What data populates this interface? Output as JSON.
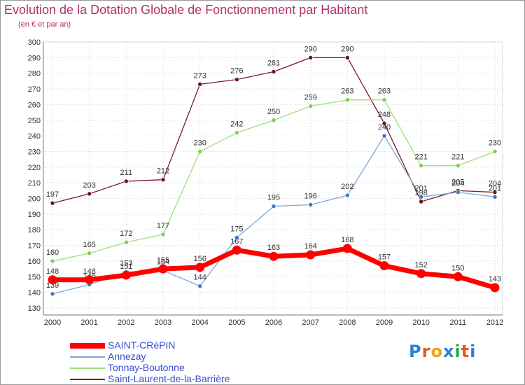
{
  "header": {
    "title": "Evolution de la Dotation Globale de Fonctionnement par Habitant",
    "subtitle": "(en € et par an)"
  },
  "logo": {
    "text": "Proxiti"
  },
  "chart_data": {
    "type": "line",
    "title": "Evolution de la Dotation Globale de Fonctionnement par Habitant",
    "subtitle": "(en € et par an)",
    "xlabel": "",
    "ylabel": "",
    "ylim": [
      130,
      300
    ],
    "yticks": [
      130,
      140,
      150,
      160,
      170,
      180,
      190,
      200,
      210,
      220,
      230,
      240,
      250,
      260,
      270,
      280,
      290,
      300
    ],
    "grid": true,
    "legend_position": "bottom-left",
    "categories": [
      "2000",
      "2001",
      "2002",
      "2003",
      "2004",
      "2005",
      "2006",
      "2007",
      "2008",
      "2009",
      "2010",
      "2011",
      "2012"
    ],
    "series": [
      {
        "name": "Saint-Laurent-de-la-Barrière",
        "color": "#7a1a22",
        "dot": "#6a141c",
        "values": [
          197,
          203,
          211,
          212,
          273,
          276,
          281,
          290,
          290,
          248,
          198,
          205,
          204
        ]
      },
      {
        "name": "Tonnay-Boutonne",
        "color": "#9ee07a",
        "dot": "#7ccf4e",
        "values": [
          160,
          165,
          172,
          177,
          230,
          242,
          250,
          259,
          263,
          263,
          221,
          221,
          230
        ]
      },
      {
        "name": "Annezay",
        "color": "#7fa8d8",
        "dot": "#3b78c4",
        "values": [
          139,
          145,
          153,
          154,
          144,
          175,
          195,
          196,
          202,
          240,
          201,
          204,
          201
        ]
      },
      {
        "name": "SAINT-CRéPIN",
        "color": "#ff0000",
        "dot": "#ff0000",
        "values": [
          148,
          148,
          151,
          155,
          156,
          167,
          163,
          164,
          168,
          157,
          152,
          150,
          143
        ]
      }
    ]
  }
}
